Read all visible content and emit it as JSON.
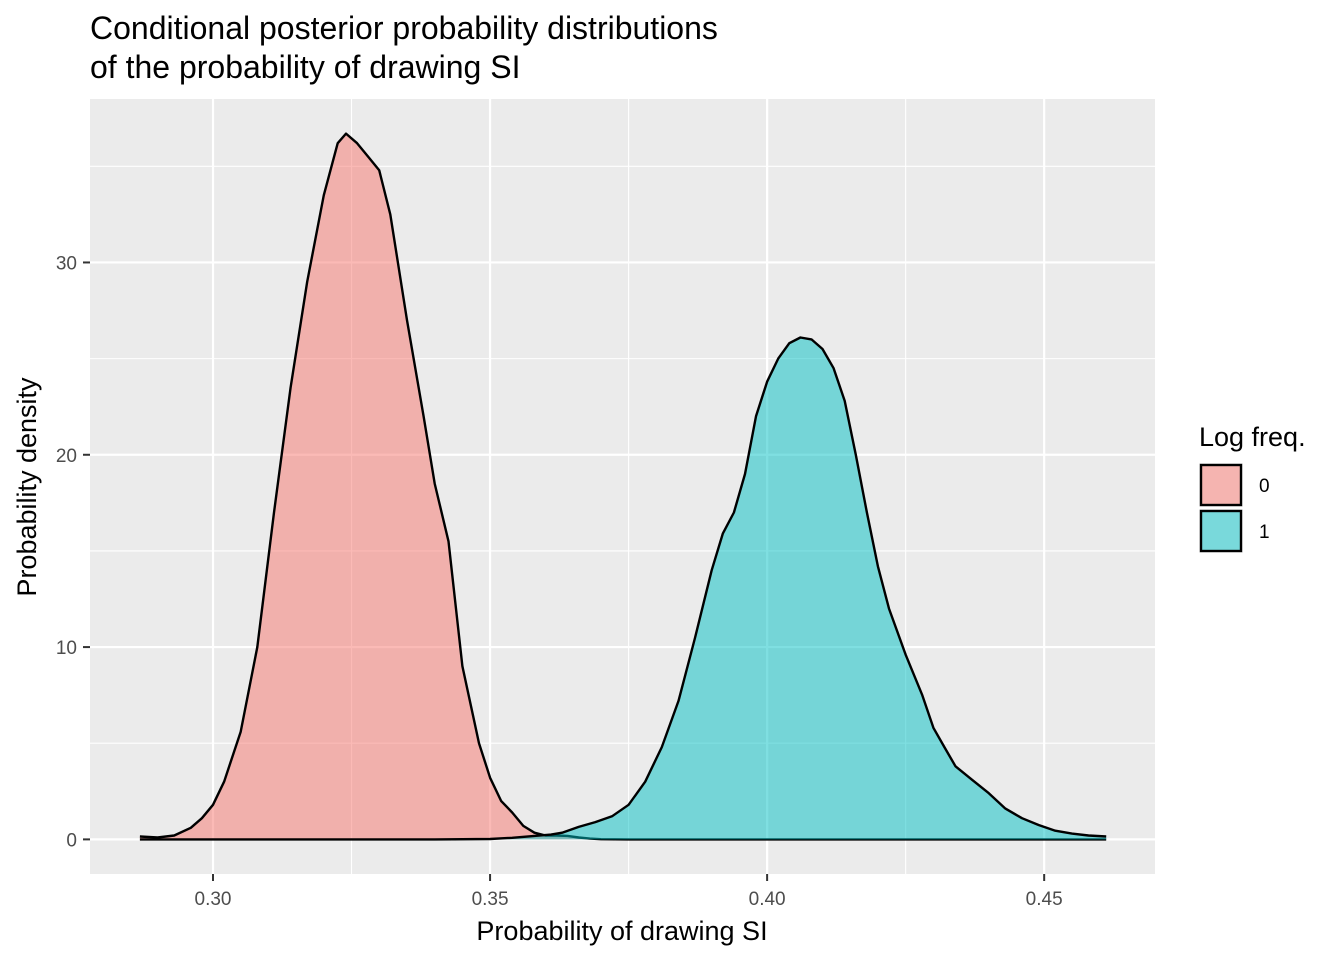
{
  "chart_data": {
    "type": "area",
    "title_line1": "Conditional posterior probability distributions",
    "title_line2": "of the probability of drawing SI",
    "xlabel": "Probability of drawing SI",
    "ylabel": "Probability density",
    "xlim": [
      0.2778,
      0.47
    ],
    "ylim": [
      -1.8,
      38.5
    ],
    "x_ticks": [
      0.3,
      0.35,
      0.4,
      0.45
    ],
    "x_tick_labels": [
      "0.30",
      "0.35",
      "0.40",
      "0.45"
    ],
    "y_ticks": [
      0,
      10,
      20,
      30
    ],
    "y_tick_labels": [
      "0",
      "10",
      "20",
      "30"
    ],
    "grid": true,
    "legend": {
      "title": "Log freq.",
      "position": "right",
      "entries": [
        "0",
        "1"
      ]
    },
    "series": [
      {
        "name": "0",
        "color": "#F8766D",
        "points": [
          [
            0.2868,
            0.15
          ],
          [
            0.29,
            0.1
          ],
          [
            0.293,
            0.2
          ],
          [
            0.296,
            0.6
          ],
          [
            0.298,
            1.1
          ],
          [
            0.3,
            1.8
          ],
          [
            0.302,
            3.0
          ],
          [
            0.305,
            5.6
          ],
          [
            0.308,
            10.0
          ],
          [
            0.311,
            17.0
          ],
          [
            0.314,
            23.5
          ],
          [
            0.317,
            29.0
          ],
          [
            0.32,
            33.5
          ],
          [
            0.3225,
            36.2
          ],
          [
            0.324,
            36.7
          ],
          [
            0.326,
            36.2
          ],
          [
            0.328,
            35.5
          ],
          [
            0.33,
            34.8
          ],
          [
            0.332,
            32.5
          ],
          [
            0.335,
            27.0
          ],
          [
            0.338,
            22.0
          ],
          [
            0.34,
            18.5
          ],
          [
            0.3425,
            15.5
          ],
          [
            0.345,
            9.0
          ],
          [
            0.348,
            5.0
          ],
          [
            0.35,
            3.2
          ],
          [
            0.352,
            2.0
          ],
          [
            0.354,
            1.4
          ],
          [
            0.356,
            0.7
          ],
          [
            0.358,
            0.35
          ],
          [
            0.36,
            0.2
          ],
          [
            0.362,
            0.2
          ],
          [
            0.364,
            0.18
          ],
          [
            0.366,
            0.1
          ],
          [
            0.368,
            0.04
          ],
          [
            0.37,
            0.01
          ],
          [
            0.375,
            0.0
          ],
          [
            0.38,
            0.0
          ],
          [
            0.4,
            0.0
          ],
          [
            0.43,
            0.0
          ],
          [
            0.4612,
            0.0
          ]
        ]
      },
      {
        "name": "1",
        "color": "#00BFC4",
        "points": [
          [
            0.2868,
            0.0
          ],
          [
            0.3,
            0.0
          ],
          [
            0.32,
            0.0
          ],
          [
            0.34,
            0.0
          ],
          [
            0.35,
            0.02
          ],
          [
            0.354,
            0.08
          ],
          [
            0.358,
            0.18
          ],
          [
            0.361,
            0.25
          ],
          [
            0.363,
            0.35
          ],
          [
            0.366,
            0.65
          ],
          [
            0.369,
            0.9
          ],
          [
            0.372,
            1.2
          ],
          [
            0.375,
            1.8
          ],
          [
            0.378,
            3.0
          ],
          [
            0.381,
            4.8
          ],
          [
            0.384,
            7.2
          ],
          [
            0.387,
            10.5
          ],
          [
            0.39,
            14.0
          ],
          [
            0.392,
            15.9
          ],
          [
            0.394,
            17.0
          ],
          [
            0.396,
            19.0
          ],
          [
            0.398,
            22.0
          ],
          [
            0.4,
            23.8
          ],
          [
            0.402,
            25.0
          ],
          [
            0.404,
            25.8
          ],
          [
            0.406,
            26.1
          ],
          [
            0.408,
            26.0
          ],
          [
            0.41,
            25.5
          ],
          [
            0.412,
            24.5
          ],
          [
            0.414,
            22.8
          ],
          [
            0.416,
            20.0
          ],
          [
            0.418,
            17.0
          ],
          [
            0.42,
            14.2
          ],
          [
            0.422,
            12.0
          ],
          [
            0.425,
            9.6
          ],
          [
            0.428,
            7.5
          ],
          [
            0.43,
            5.8
          ],
          [
            0.432,
            4.8
          ],
          [
            0.434,
            3.8
          ],
          [
            0.437,
            3.1
          ],
          [
            0.44,
            2.4
          ],
          [
            0.443,
            1.6
          ],
          [
            0.446,
            1.1
          ],
          [
            0.449,
            0.75
          ],
          [
            0.452,
            0.45
          ],
          [
            0.455,
            0.3
          ],
          [
            0.458,
            0.2
          ],
          [
            0.4612,
            0.15
          ]
        ]
      }
    ]
  }
}
